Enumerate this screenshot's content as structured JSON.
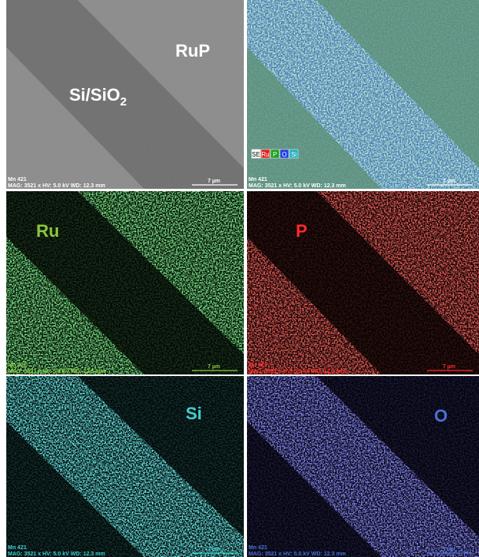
{
  "panels": [
    {
      "labels": [
        {
          "text": "RuP"
        },
        {
          "text": "Si/SiO",
          "subscript": "2"
        }
      ],
      "sample": "Mn 421",
      "settings": "MAG: 3521 x HV: 5.0 kV WD: 12.3 mm",
      "scale": "7 µm"
    },
    {
      "legend": [
        "SE",
        "Ru",
        "P",
        "O",
        "Si"
      ],
      "sample": "Mn 421",
      "settings": "MAG: 3521 x HV: 5.0 kV WD: 12.3 mm",
      "scale": "7 µm"
    },
    {
      "labels": [
        {
          "text": "Ru"
        }
      ],
      "sample": "Mn 421",
      "settings": "MAG: 3521 x HV: 5.0 kV WD: 12.3 mm",
      "scale": "7 µm"
    },
    {
      "labels": [
        {
          "text": "P"
        }
      ],
      "sample": "Mn 421",
      "settings": "MAG: 3521 x HV: 5.0 kV WD: 12.3 mm",
      "scale": "7 µm"
    },
    {
      "labels": [
        {
          "text": "Si"
        }
      ],
      "sample": "Mn 421",
      "settings": "MAG: 3521 x HV: 5.0 kV WD: 12.3 mm",
      "scale": "7 µm"
    },
    {
      "labels": [
        {
          "text": "O"
        }
      ],
      "sample": "Mn 421",
      "settings": "MAG: 3521 x HV: 5.0 kV WD: 12.3 mm",
      "scale": "7 µm"
    }
  ]
}
